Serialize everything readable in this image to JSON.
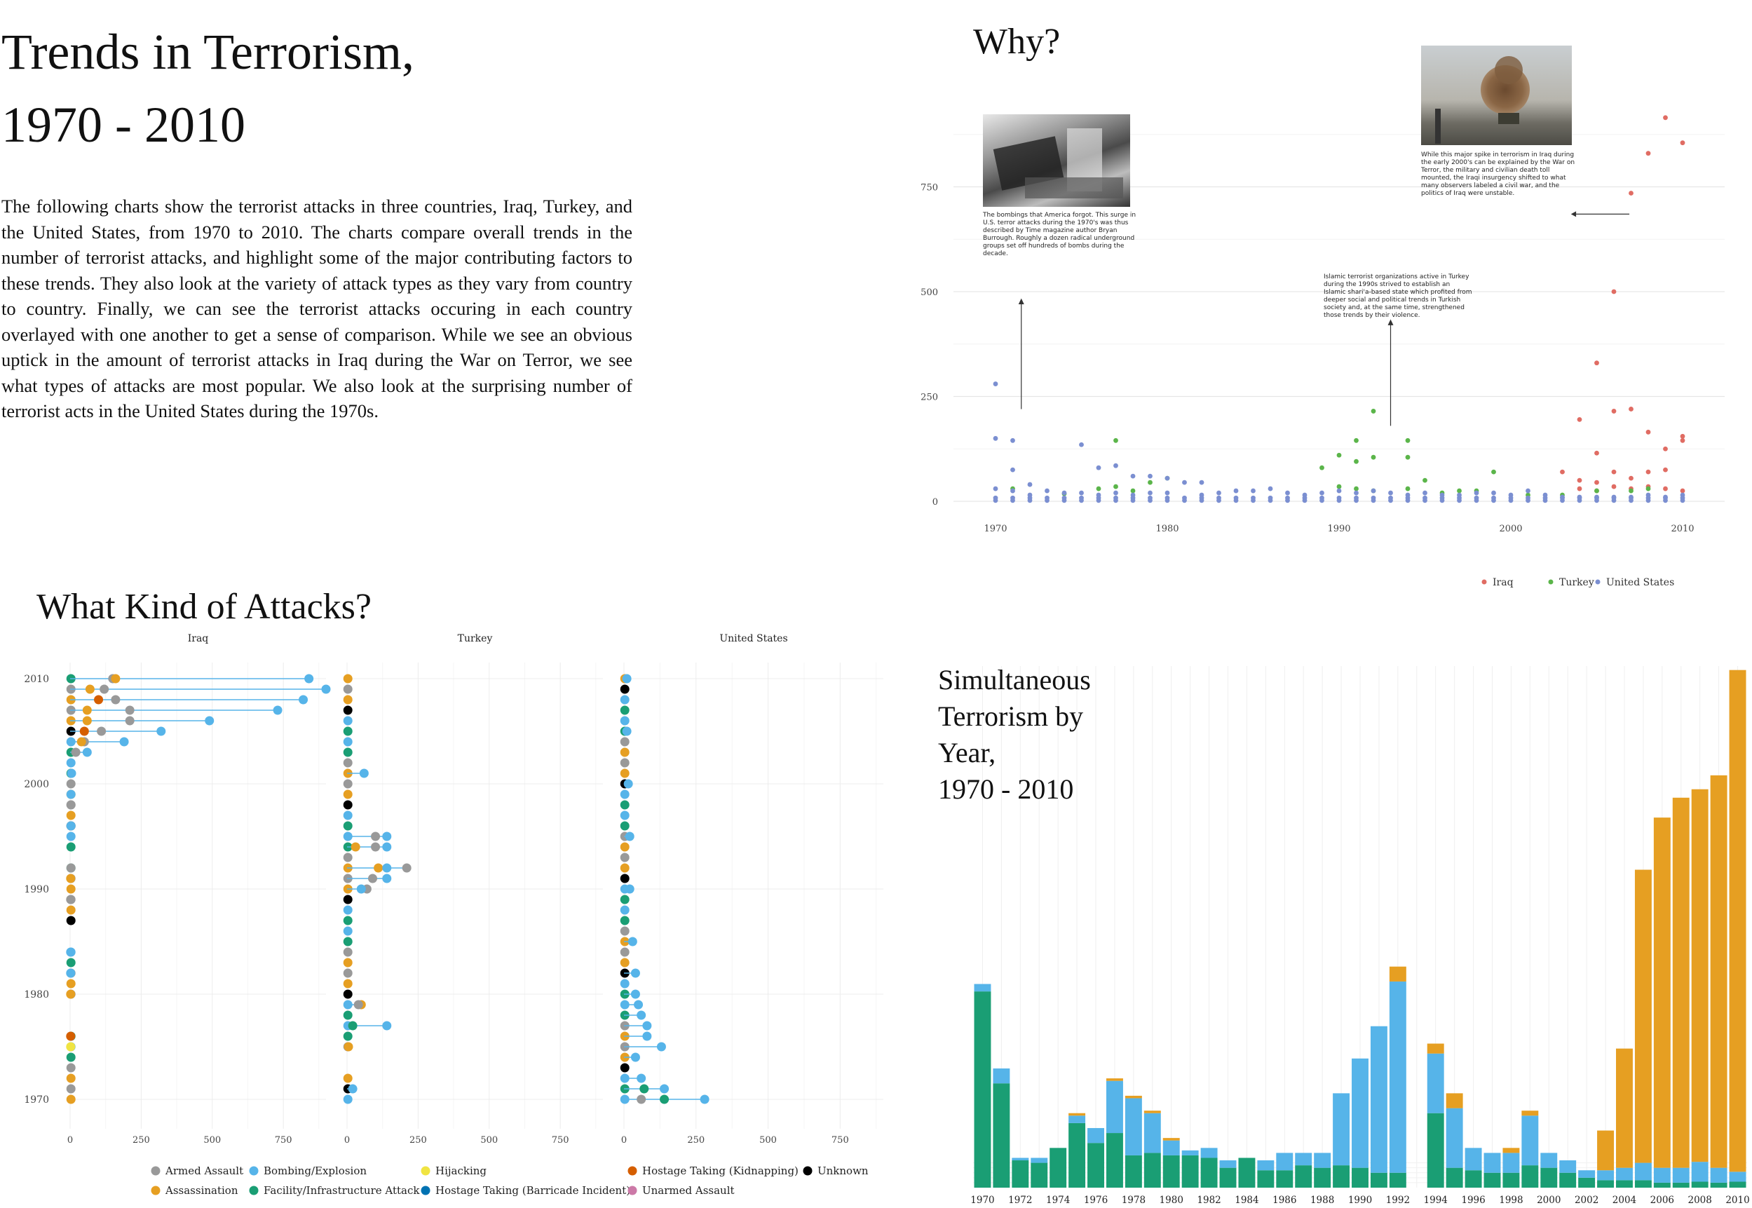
{
  "title_lines": [
    "Trends in Terrorism,",
    "1970 - 2010"
  ],
  "intro": "The following charts show the terrorist attacks in three countries, Iraq, Turkey, and the United States, from 1970 to 2010. The charts compare overall trends in the number of terrorist attacks, and highlight some of the major contributing factors to these trends. They also look at the variety of attack types as they vary from country to country. Finally, we can see the terrorist attacks occuring in each country overlayed with one another to get a sense of comparison. While we see an obvious uptick in the amount of terrorist attacks in Iraq during the War on Terror, we see what types of attacks are most popular. We also look at the surprising number of terrorist acts in the United States during the 1970s.",
  "sections": {
    "why": "Why?",
    "kinds": "What Kind of Attacks?",
    "simultaneous": [
      "Simultaneous",
      "Terrorism by",
      "Year,",
      "1970 - 2010"
    ]
  },
  "annotations": {
    "us_1970s": "The bombings that America forgot. This surge in U.S. terror attacks during the 1970's was thus described by Time magazine author Bryan Burrough. Roughly a dozen radical underground groups set off hundreds of bombs during the decade.",
    "turkey_1990s": "Islamic terrorist organizations active in Turkey during the 1990s strived to establish an Islamic shari'a-based state which profited from deeper social and political trends in Turkish society and, at the same time, strengthened those trends by their violence.",
    "iraq_2000s": "While this major spike in terrorism in Iraq during the early 2000's can be explained by the War on Terror, the military and civilian death toll mounted, the Iraqi insurgency shifted to what many observers labeled a civil war, and the politics of Iraq were unstable."
  },
  "colors": {
    "iraq": "#e06c63",
    "turkey": "#5bb54a",
    "us": "#7b8fd1",
    "armed_assault": "#999999",
    "assassination": "#e69f22",
    "bombing": "#56b4e9",
    "facility": "#1a9e74",
    "hijacking": "#f0e442",
    "barricade": "#0072b2",
    "kidnapping": "#d55e00",
    "unarmed": "#cc79a7",
    "unknown": "#000000",
    "sim_us": "#1a9e74",
    "sim_turkey": "#56b4e9",
    "sim_iraq": "#e69f22"
  },
  "chart_data": [
    {
      "id": "why",
      "type": "scatter",
      "title": "",
      "xlabel": "",
      "ylabel": "",
      "xlim": [
        1970,
        2010
      ],
      "ylim": [
        0,
        1000
      ],
      "xticks": [
        1970,
        1980,
        1990,
        2000,
        2010
      ],
      "yticks": [
        0,
        250,
        500,
        750
      ],
      "grid": true,
      "legend": "bottom-center",
      "legend_labels": [
        "Iraq",
        "Turkey",
        "United States"
      ],
      "series": [
        {
          "name": "Iraq",
          "points": [
            [
              2003,
              70
            ],
            [
              2004,
              195
            ],
            [
              2004,
              50
            ],
            [
              2004,
              30
            ],
            [
              2005,
              330
            ],
            [
              2005,
              115
            ],
            [
              2005,
              45
            ],
            [
              2005,
              25
            ],
            [
              2006,
              500
            ],
            [
              2006,
              215
            ],
            [
              2006,
              70
            ],
            [
              2006,
              35
            ],
            [
              2007,
              735
            ],
            [
              2007,
              220
            ],
            [
              2007,
              55
            ],
            [
              2007,
              30
            ],
            [
              2008,
              830
            ],
            [
              2008,
              165
            ],
            [
              2008,
              70
            ],
            [
              2008,
              35
            ],
            [
              2009,
              915
            ],
            [
              2009,
              125
            ],
            [
              2009,
              75
            ],
            [
              2009,
              30
            ],
            [
              2010,
              855
            ],
            [
              2010,
              155
            ],
            [
              2010,
              145
            ],
            [
              2010,
              25
            ]
          ]
        },
        {
          "name": "Turkey",
          "points": [
            [
              1971,
              30
            ],
            [
              1974,
              18
            ],
            [
              1976,
              30
            ],
            [
              1977,
              145
            ],
            [
              1977,
              35
            ],
            [
              1978,
              25
            ],
            [
              1979,
              45
            ],
            [
              1980,
              55
            ],
            [
              1989,
              80
            ],
            [
              1990,
              110
            ],
            [
              1990,
              35
            ],
            [
              1991,
              145
            ],
            [
              1991,
              95
            ],
            [
              1991,
              30
            ],
            [
              1992,
              215
            ],
            [
              1992,
              105
            ],
            [
              1992,
              25
            ],
            [
              1994,
              145
            ],
            [
              1994,
              105
            ],
            [
              1994,
              30
            ],
            [
              1995,
              50
            ],
            [
              1996,
              20
            ],
            [
              1997,
              25
            ],
            [
              1998,
              25
            ],
            [
              1999,
              70
            ],
            [
              2001,
              15
            ],
            [
              2003,
              15
            ],
            [
              2005,
              25
            ],
            [
              2007,
              25
            ],
            [
              2008,
              30
            ]
          ]
        },
        {
          "name": "United States",
          "points": [
            [
              1970,
              280
            ],
            [
              1970,
              150
            ],
            [
              1970,
              30
            ],
            [
              1971,
              145
            ],
            [
              1971,
              75
            ],
            [
              1971,
              25
            ],
            [
              1972,
              40
            ],
            [
              1972,
              15
            ],
            [
              1973,
              25
            ],
            [
              1974,
              20
            ],
            [
              1975,
              135
            ],
            [
              1975,
              20
            ],
            [
              1976,
              80
            ],
            [
              1976,
              15
            ],
            [
              1977,
              85
            ],
            [
              1977,
              20
            ],
            [
              1978,
              60
            ],
            [
              1978,
              15
            ],
            [
              1979,
              60
            ],
            [
              1979,
              20
            ],
            [
              1980,
              55
            ],
            [
              1980,
              20
            ],
            [
              1981,
              45
            ],
            [
              1982,
              45
            ],
            [
              1982,
              15
            ],
            [
              1983,
              20
            ],
            [
              1984,
              25
            ],
            [
              1985,
              25
            ],
            [
              1986,
              30
            ],
            [
              1987,
              20
            ],
            [
              1988,
              15
            ],
            [
              1989,
              20
            ],
            [
              1990,
              25
            ],
            [
              1991,
              20
            ],
            [
              1992,
              25
            ],
            [
              1993,
              20
            ],
            [
              1994,
              15
            ],
            [
              1995,
              20
            ],
            [
              1996,
              15
            ],
            [
              1997,
              15
            ],
            [
              1998,
              20
            ],
            [
              1999,
              20
            ],
            [
              2000,
              15
            ],
            [
              2001,
              25
            ],
            [
              2002,
              15
            ],
            [
              2003,
              10
            ],
            [
              2004,
              10
            ],
            [
              2005,
              10
            ],
            [
              2006,
              10
            ],
            [
              2007,
              10
            ],
            [
              2008,
              15
            ],
            [
              2009,
              10
            ],
            [
              2010,
              15
            ]
          ]
        }
      ]
    },
    {
      "id": "kinds",
      "type": "scatter",
      "title": "",
      "facets": [
        "Iraq",
        "Turkey",
        "United States"
      ],
      "xlim": [
        0,
        900
      ],
      "ylim": [
        1968,
        2011
      ],
      "xticks": [
        0,
        250,
        500,
        750
      ],
      "yticks": [
        1970,
        1980,
        1990,
        2000,
        2010
      ],
      "grid": true,
      "legend": "bottom",
      "legend_labels": [
        "Armed Assault",
        "Assassination",
        "Bombing/Explosion",
        "Facility/Infrastructure Attack",
        "Hijacking",
        "Hostage Taking (Barricade Incident)",
        "Hostage Taking (Kidnapping)",
        "Unarmed Assault",
        "Unknown"
      ],
      "facet_values": {
        "Iraq": {
          "2010": {
            "bombing": 840,
            "armed_assault": 150,
            "assassination": 160
          },
          "2009": {
            "bombing": 900,
            "armed_assault": 120,
            "assassination": 70
          },
          "2008": {
            "bombing": 820,
            "armed_assault": 160,
            "kidnapping": 100
          },
          "2007": {
            "bombing": 730,
            "armed_assault": 210,
            "assassination": 60
          },
          "2006": {
            "bombing": 490,
            "armed_assault": 210,
            "assassination": 60
          },
          "2005": {
            "bombing": 320,
            "armed_assault": 110,
            "kidnapping": 50
          },
          "2004": {
            "bombing": 190,
            "armed_assault": 50,
            "assassination": 40
          },
          "2003": {
            "bombing": 60,
            "armed_assault": 20
          },
          "2001": {
            "bombing": 5
          },
          "1999": {
            "bombing": 3
          },
          "1998": {
            "armed_assault": 3
          },
          "1996": {
            "bombing": 3
          },
          "1992": {
            "armed_assault": 3
          },
          "1991": {
            "assassination": 2
          },
          "1989": {
            "armed_assault": 2
          },
          "1984": {
            "bombing": 2
          },
          "1982": {
            "bombing": 2
          },
          "1980": {
            "assassination": 2
          },
          "1976": {
            "kidnapping": 2
          },
          "1975": {
            "hijacking": 2
          }
        },
        "Turkey": {
          "2001": {
            "bombing": 60
          },
          "1995": {
            "bombing": 140,
            "armed_assault": 100
          },
          "1994": {
            "bombing": 140,
            "armed_assault": 100,
            "assassination": 30
          },
          "1992": {
            "armed_assault": 210,
            "assassination": 110,
            "bombing": 140
          },
          "1991": {
            "bombing": 140,
            "armed_assault": 90
          },
          "1990": {
            "armed_assault": 70,
            "bombing": 50
          },
          "1979": {
            "assassination": 50,
            "armed_assault": 40
          },
          "1977": {
            "bombing": 140,
            "facility": 20
          },
          "1975": {
            "assassination": 5
          },
          "1971": {
            "bombing": 20
          }
        },
        "United States": {
          "1970": {
            "bombing": 280,
            "facility": 140,
            "armed_assault": 60
          },
          "1971": {
            "bombing": 140,
            "facility": 70
          },
          "1972": {
            "bombing": 60
          },
          "1974": {
            "bombing": 40
          },
          "1975": {
            "bombing": 130
          },
          "1976": {
            "bombing": 80
          },
          "1977": {
            "bombing": 80
          },
          "1978": {
            "bombing": 60
          },
          "1979": {
            "bombing": 50
          },
          "1980": {
            "bombing": 40
          },
          "1982": {
            "bombing": 40
          },
          "1985": {
            "bombing": 30
          },
          "1990": {
            "bombing": 20
          },
          "1995": {
            "bombing": 20
          },
          "2000": {
            "bombing": 15
          },
          "2005": {
            "bombing": 10
          },
          "2010": {
            "bombing": 10
          }
        }
      }
    },
    {
      "id": "simultaneous",
      "type": "bar",
      "stacked": true,
      "title": "",
      "categories": [
        1970,
        1971,
        1972,
        1973,
        1974,
        1975,
        1976,
        1977,
        1978,
        1979,
        1980,
        1981,
        1982,
        1983,
        1984,
        1985,
        1986,
        1987,
        1988,
        1989,
        1990,
        1991,
        1992,
        1993,
        1994,
        1995,
        1996,
        1997,
        1998,
        1999,
        2000,
        2001,
        2002,
        2003,
        2004,
        2005,
        2006,
        2007,
        2008,
        2009,
        2010
      ],
      "xtick_labels": [
        "1970",
        "1972",
        "1974",
        "1976",
        "1978",
        "1980",
        "1982",
        "1984",
        "1986",
        "1988",
        "1990",
        "1992",
        "1994",
        "1996",
        "1998",
        "2000",
        "2002",
        "2004",
        "2006",
        "2008",
        "2010"
      ],
      "ylim": [
        0,
        1050
      ],
      "series": [
        {
          "name": "United States",
          "values": [
            395,
            210,
            55,
            50,
            80,
            130,
            90,
            110,
            65,
            70,
            65,
            65,
            60,
            40,
            60,
            35,
            35,
            45,
            40,
            45,
            40,
            30,
            30,
            0,
            150,
            40,
            35,
            30,
            30,
            45,
            40,
            30,
            20,
            15,
            15,
            15,
            10,
            10,
            12,
            10,
            12
          ]
        },
        {
          "name": "Turkey",
          "values": [
            15,
            30,
            5,
            10,
            0,
            15,
            30,
            105,
            115,
            80,
            30,
            10,
            20,
            15,
            0,
            20,
            35,
            25,
            30,
            145,
            220,
            295,
            385,
            0,
            120,
            120,
            45,
            40,
            40,
            100,
            30,
            25,
            15,
            20,
            25,
            35,
            30,
            30,
            40,
            30,
            20
          ]
        },
        {
          "name": "Iraq",
          "values": [
            0,
            0,
            0,
            0,
            0,
            5,
            0,
            5,
            5,
            5,
            5,
            0,
            0,
            0,
            0,
            0,
            0,
            0,
            0,
            0,
            0,
            0,
            30,
            0,
            20,
            30,
            0,
            0,
            10,
            10,
            0,
            0,
            0,
            80,
            240,
            590,
            705,
            745,
            750,
            790,
            1010
          ]
        }
      ]
    }
  ]
}
